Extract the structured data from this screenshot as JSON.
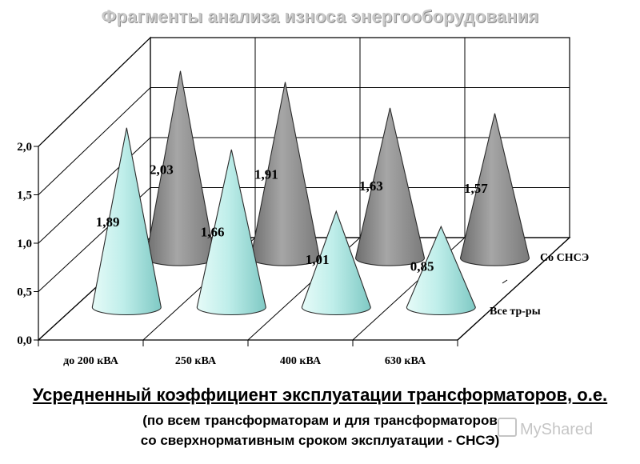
{
  "page": {
    "top_title": "Фрагменты анализа износа энергооборудования",
    "caption_main": "Усредненный коэффициент эксплуатации трансформаторов, о.е.",
    "caption_sub1": "(по всем трансформаторам и для трансформаторов",
    "caption_sub2": "со сверхнормативным сроком эксплуатации - СНСЭ)",
    "watermark_text": "MyShared",
    "watermark_icon": "myshared-logo-icon"
  },
  "chart_data": {
    "type": "bar",
    "bar_shape": "cone",
    "title": "",
    "xlabel": "",
    "ylabel": "",
    "categories": [
      "до 200 кВА",
      "250 кВА",
      "400 кВА",
      "630 кВА"
    ],
    "ylim": [
      0,
      2.0
    ],
    "yticks": [
      "0,0",
      "0,5",
      "1,0",
      "1,5",
      "2,0"
    ],
    "grid": true,
    "series": [
      {
        "name": "Все тр-ры",
        "values": [
          1.89,
          1.66,
          1.01,
          0.85
        ],
        "labels": [
          "1,89",
          "1,66",
          "1,01",
          "0,85"
        ],
        "color": "#bfeeea"
      },
      {
        "name": "Со СНСЭ",
        "values": [
          2.03,
          1.91,
          1.63,
          1.57
        ],
        "labels": [
          "2,03",
          "1,91",
          "1,63",
          "1,57"
        ],
        "color": "#9a9a9a"
      }
    ]
  }
}
